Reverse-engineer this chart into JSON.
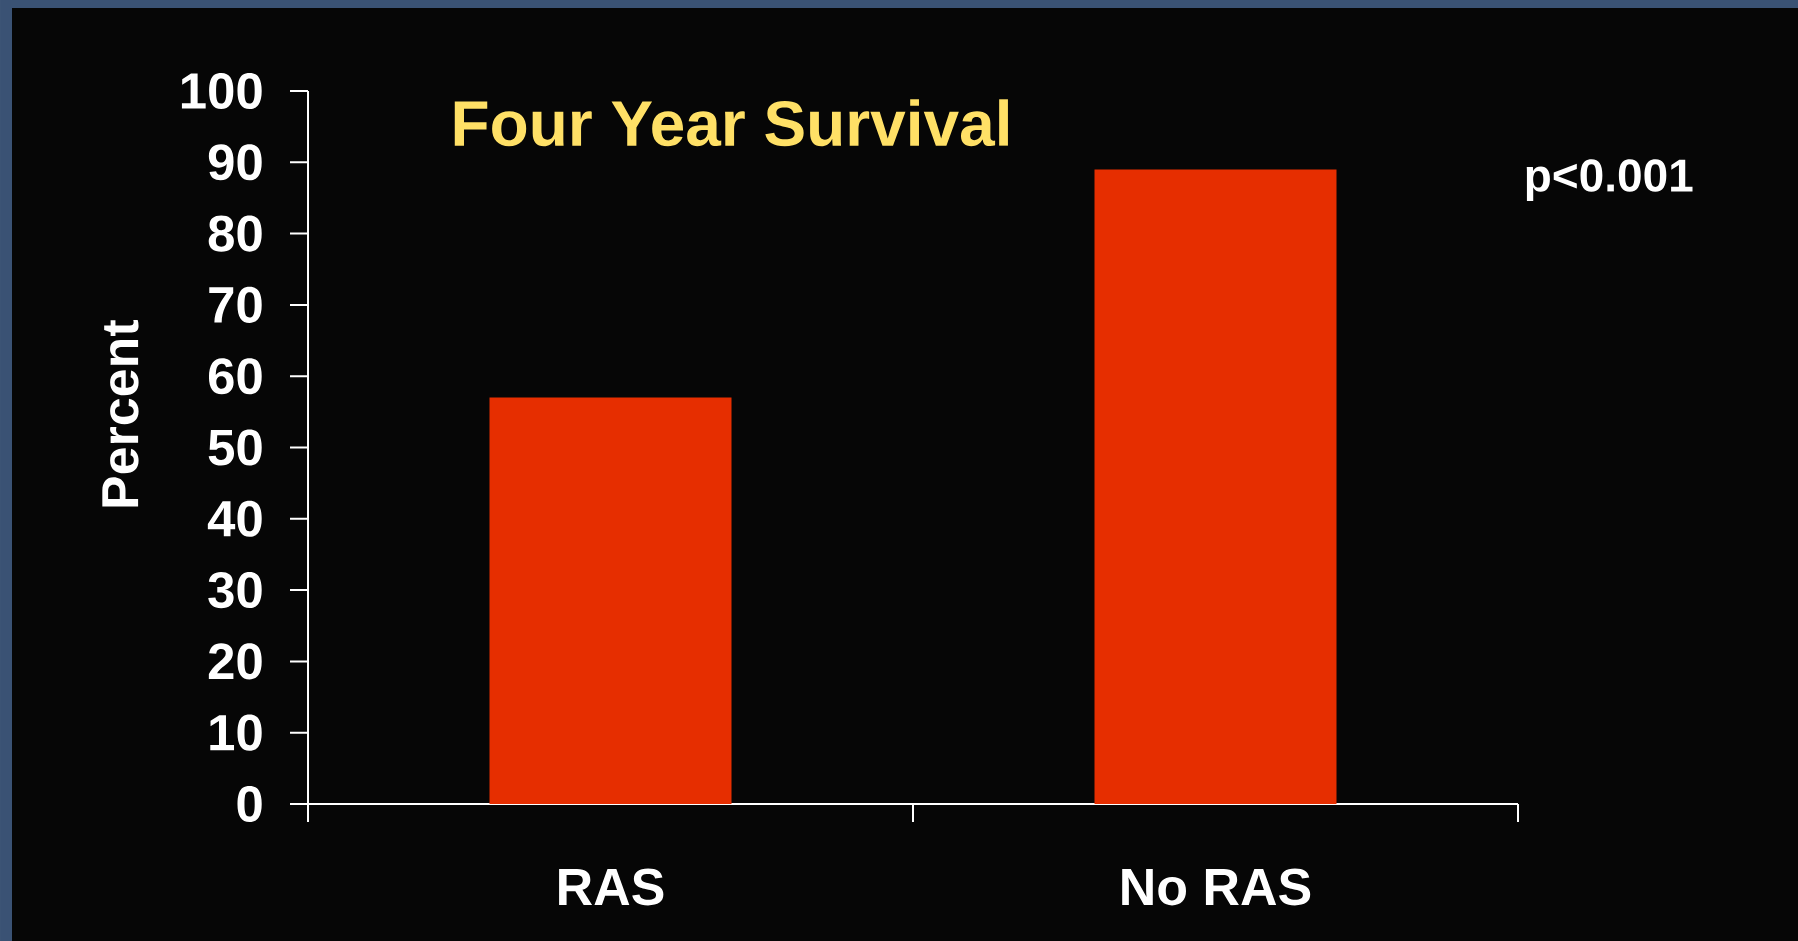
{
  "chart_data": {
    "type": "bar",
    "title": "Four Year Survival",
    "ylabel": "Percent",
    "categories": [
      "RAS",
      "No RAS"
    ],
    "values": [
      57,
      89
    ],
    "color": "#e62e00",
    "ylim": [
      0,
      100
    ],
    "yticks": [
      0,
      10,
      20,
      30,
      40,
      50,
      60,
      70,
      80,
      90,
      100
    ],
    "annotations": [
      "p<0.001"
    ]
  }
}
